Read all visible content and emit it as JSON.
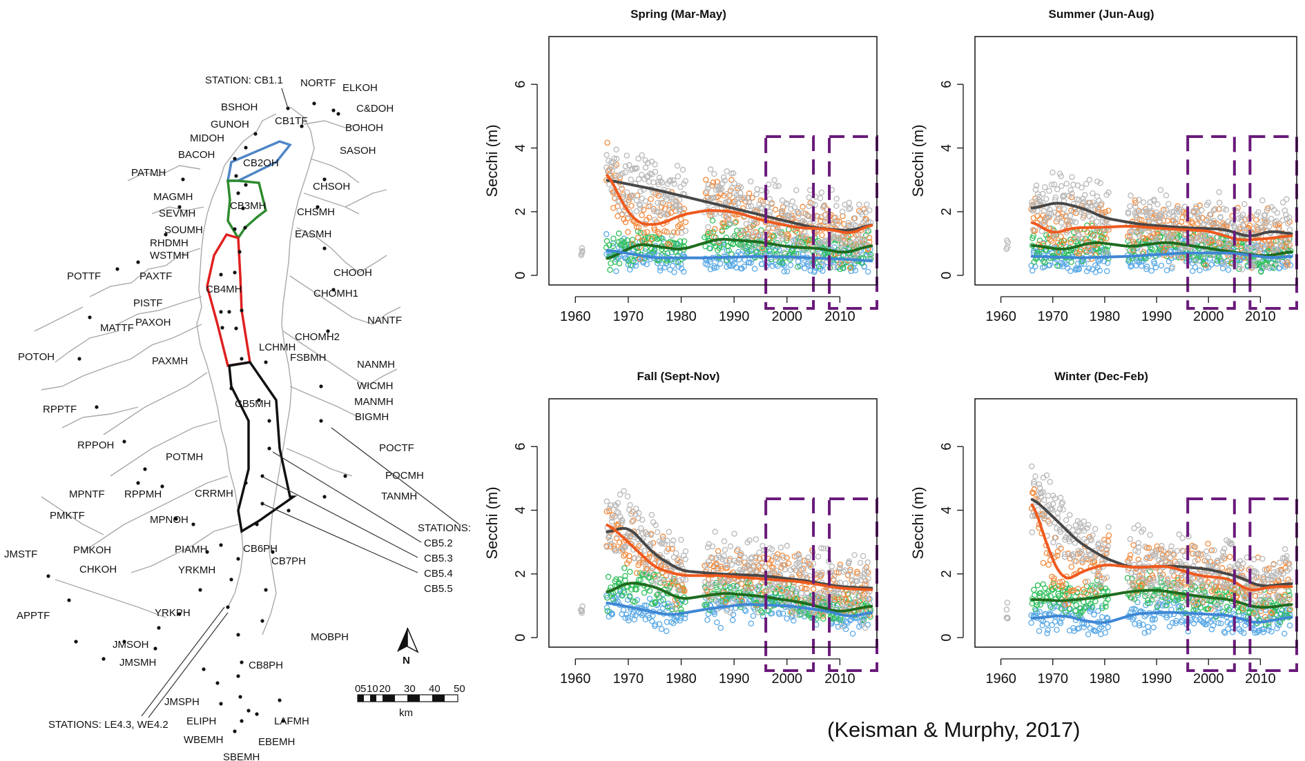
{
  "citation": "(Keisman & Murphy, 2017)",
  "map": {
    "north_label": "N",
    "scale_ticks": [
      "0",
      "5",
      "10",
      "20",
      "30",
      "40",
      "50"
    ],
    "scale_unit": "km",
    "station_labels": {
      "cb11": "STATION: CB1.1",
      "cb5": [
        "STATIONS:",
        "CB5.2",
        "CB5.3",
        "CB5.4",
        "CB5.5"
      ],
      "le": "STATIONS: LE4.3, WE4.2"
    },
    "segments": [
      {
        "name": "CB1TF"
      },
      {
        "name": "CB2OH"
      },
      {
        "name": "CB3MH"
      },
      {
        "name": "CB4MH"
      },
      {
        "name": "CB5MH"
      },
      {
        "name": "CB6PH"
      },
      {
        "name": "CB7PH"
      },
      {
        "name": "CB8PH"
      },
      {
        "name": "NORTF"
      },
      {
        "name": "ELKOH"
      },
      {
        "name": "BSHOH"
      },
      {
        "name": "C&DOH"
      },
      {
        "name": "GUNOH"
      },
      {
        "name": "BOHOH"
      },
      {
        "name": "MIDOH"
      },
      {
        "name": "SASOH"
      },
      {
        "name": "BACOH"
      },
      {
        "name": "PATMH"
      },
      {
        "name": "CHSOH"
      },
      {
        "name": "MAGMH"
      },
      {
        "name": "CHSMH"
      },
      {
        "name": "SEVMH"
      },
      {
        "name": "SOUMH"
      },
      {
        "name": "EASMH"
      },
      {
        "name": "RHDMH"
      },
      {
        "name": "WSTMH"
      },
      {
        "name": "POTTF"
      },
      {
        "name": "PAXTF"
      },
      {
        "name": "CHOOH"
      },
      {
        "name": "PISTF"
      },
      {
        "name": "CHOMH1"
      },
      {
        "name": "MATTF"
      },
      {
        "name": "PAXOH"
      },
      {
        "name": "NANTF"
      },
      {
        "name": "CHOMH2"
      },
      {
        "name": "LCHMH"
      },
      {
        "name": "POTOH"
      },
      {
        "name": "FSBMH"
      },
      {
        "name": "PAXMH"
      },
      {
        "name": "NANMH"
      },
      {
        "name": "WICMH"
      },
      {
        "name": "RPPTF"
      },
      {
        "name": "MANMH"
      },
      {
        "name": "BIGMH"
      },
      {
        "name": "RPPOH"
      },
      {
        "name": "POCTF"
      },
      {
        "name": "POTMH"
      },
      {
        "name": "POCMH"
      },
      {
        "name": "TANMH"
      },
      {
        "name": "MPNTF"
      },
      {
        "name": "RPPMH"
      },
      {
        "name": "CRRMH"
      },
      {
        "name": "PMKTF"
      },
      {
        "name": "MPNOH"
      },
      {
        "name": "JMSTF"
      },
      {
        "name": "PMKOH"
      },
      {
        "name": "PIAMH"
      },
      {
        "name": "CHKOH"
      },
      {
        "name": "YRKMH"
      },
      {
        "name": "APPTF"
      },
      {
        "name": "YRKPH"
      },
      {
        "name": "MOBPH"
      },
      {
        "name": "JMSOH"
      },
      {
        "name": "JMSMH"
      },
      {
        "name": "JMSPH"
      },
      {
        "name": "ELIPH"
      },
      {
        "name": "LAFMH"
      },
      {
        "name": "WBEMH"
      },
      {
        "name": "EBEMH"
      },
      {
        "name": "SBEMH"
      }
    ]
  },
  "chart_data": [
    {
      "type": "scatter",
      "title": "Spring (Mar-May)",
      "ylabel": "Secchi (m)",
      "xlabel": "",
      "xlim": [
        1955,
        2017
      ],
      "ylim": [
        -0.3,
        7.5
      ],
      "x_ticks": [
        1960,
        1970,
        1980,
        1990,
        2000,
        2010
      ],
      "y_ticks": [
        0,
        2,
        4,
        6
      ],
      "series": [
        {
          "color": "#474747",
          "x": [
            1966,
            1975,
            1985,
            1995,
            2005,
            2012,
            2016
          ],
          "values": [
            3.0,
            2.7,
            2.3,
            1.9,
            1.5,
            1.4,
            1.6
          ]
        },
        {
          "color": "#ef5a1f",
          "x": [
            1966,
            1969,
            1972,
            1976,
            1980,
            1985,
            1990,
            1996,
            2002,
            2008,
            2012,
            2016
          ],
          "values": [
            3.3,
            2.2,
            1.6,
            1.6,
            1.9,
            2.05,
            2.0,
            1.7,
            1.5,
            1.45,
            1.3,
            1.6
          ]
        },
        {
          "color": "#1f6b1f",
          "x": [
            1966,
            1972,
            1976,
            1980,
            1987,
            1995,
            2000,
            2006,
            2011,
            2016
          ],
          "values": [
            0.5,
            1.0,
            0.9,
            0.8,
            1.15,
            1.05,
            0.9,
            0.85,
            0.7,
            0.95
          ]
        },
        {
          "color": "#3f87d4",
          "x": [
            1966,
            1975,
            1985,
            1995,
            2005,
            2012,
            2016
          ],
          "values": [
            0.8,
            0.55,
            0.55,
            0.6,
            0.55,
            0.5,
            0.45
          ]
        }
      ],
      "boxes": [
        [
          1996,
          2005
        ],
        [
          2008,
          2017
        ]
      ]
    },
    {
      "type": "scatter",
      "title": "Summer (Jun-Aug)",
      "ylabel": "Secchi (m)",
      "xlabel": "",
      "xlim": [
        1955,
        2017
      ],
      "ylim": [
        -0.3,
        7.5
      ],
      "x_ticks": [
        1960,
        1970,
        1980,
        1990,
        2000,
        2010
      ],
      "y_ticks": [
        0,
        2,
        4,
        6
      ],
      "series": [
        {
          "color": "#474747",
          "x": [
            1966,
            1971,
            1976,
            1980,
            1987,
            1995,
            2003,
            2008,
            2012,
            2016
          ],
          "values": [
            2.1,
            2.3,
            2.1,
            1.8,
            1.6,
            1.5,
            1.45,
            1.2,
            1.4,
            1.3
          ]
        },
        {
          "color": "#ef5a1f",
          "x": [
            1966,
            1970,
            1974,
            1978,
            1985,
            1993,
            2000,
            2006,
            2011,
            2016
          ],
          "values": [
            1.7,
            1.3,
            1.5,
            1.5,
            1.55,
            1.45,
            1.4,
            1.1,
            1.15,
            1.25
          ]
        },
        {
          "color": "#1f6b1f",
          "x": [
            1966,
            1972,
            1978,
            1985,
            1992,
            2000,
            2006,
            2011,
            2016
          ],
          "values": [
            0.95,
            0.8,
            1.05,
            0.9,
            1.05,
            0.85,
            0.7,
            0.6,
            0.75
          ]
        },
        {
          "color": "#3f87d4",
          "x": [
            1966,
            1975,
            1985,
            1995,
            2005,
            2012,
            2016
          ],
          "values": [
            0.6,
            0.55,
            0.6,
            0.7,
            0.7,
            0.55,
            0.6
          ]
        }
      ],
      "boxes": [
        [
          1996,
          2005
        ],
        [
          2008,
          2017
        ]
      ]
    },
    {
      "type": "scatter",
      "title": "Fall (Sept-Nov)",
      "ylabel": "Secchi (m)",
      "xlabel": "",
      "xlim": [
        1955,
        2017
      ],
      "ylim": [
        -0.3,
        7.5
      ],
      "x_ticks": [
        1960,
        1970,
        1980,
        1990,
        2000,
        2010
      ],
      "y_ticks": [
        0,
        2,
        4,
        6
      ],
      "series": [
        {
          "color": "#474747",
          "x": [
            1966,
            1970,
            1975,
            1980,
            1987,
            1995,
            2003,
            2010,
            2016
          ],
          "values": [
            3.3,
            3.5,
            2.6,
            2.1,
            2.0,
            1.95,
            1.8,
            1.6,
            1.55
          ]
        },
        {
          "color": "#ef5a1f",
          "x": [
            1966,
            1970,
            1975,
            1980,
            1987,
            1995,
            2003,
            2010,
            2016
          ],
          "values": [
            3.6,
            3.0,
            2.2,
            1.95,
            1.95,
            1.85,
            1.75,
            1.55,
            1.5
          ]
        },
        {
          "color": "#1f6b1f",
          "x": [
            1966,
            1970,
            1975,
            1980,
            1988,
            1995,
            2003,
            2010,
            2016
          ],
          "values": [
            1.4,
            1.75,
            1.6,
            1.2,
            1.4,
            1.3,
            1.1,
            0.8,
            1.0
          ]
        },
        {
          "color": "#3f87d4",
          "x": [
            1966,
            1972,
            1978,
            1985,
            1992,
            2000,
            2007,
            2012,
            2016
          ],
          "values": [
            1.1,
            0.9,
            0.7,
            0.9,
            1.05,
            1.0,
            0.85,
            0.65,
            0.8
          ]
        }
      ],
      "boxes": [
        [
          1996,
          2005
        ],
        [
          2008,
          2017
        ]
      ]
    },
    {
      "type": "scatter",
      "title": "Winter (Dec-Feb)",
      "ylabel": "Secchi (m)",
      "xlabel": "",
      "xlim": [
        1955,
        2017
      ],
      "ylim": [
        -0.3,
        7.5
      ],
      "x_ticks": [
        1960,
        1970,
        1980,
        1990,
        2000,
        2010
      ],
      "y_ticks": [
        0,
        2,
        4,
        6
      ],
      "series": [
        {
          "color": "#474747",
          "x": [
            1966,
            1970,
            1975,
            1980,
            1985,
            1993,
            2000,
            2006,
            2010,
            2016
          ],
          "values": [
            4.4,
            3.8,
            3.0,
            2.5,
            2.2,
            2.25,
            2.15,
            1.9,
            1.6,
            1.7
          ]
        },
        {
          "color": "#ef5a1f",
          "x": [
            1966,
            1969,
            1972,
            1976,
            1980,
            1986,
            1992,
            1998,
            2004,
            2008,
            2012,
            2016
          ],
          "values": [
            4.4,
            2.8,
            1.75,
            2.1,
            2.3,
            2.2,
            2.25,
            1.95,
            1.85,
            1.45,
            1.6,
            1.6
          ]
        },
        {
          "color": "#1f6b1f",
          "x": [
            1966,
            1972,
            1978,
            1985,
            1990,
            1998,
            2004,
            2009,
            2012,
            2016
          ],
          "values": [
            1.2,
            1.15,
            1.25,
            1.45,
            1.5,
            1.3,
            1.2,
            0.95,
            0.95,
            1.05
          ]
        },
        {
          "color": "#3f87d4",
          "x": [
            1966,
            1972,
            1977,
            1980,
            1986,
            1992,
            1998,
            2004,
            2009,
            2016
          ],
          "values": [
            0.6,
            0.7,
            0.5,
            0.45,
            0.75,
            0.8,
            0.75,
            0.7,
            0.45,
            0.65
          ]
        }
      ],
      "boxes": [
        [
          1996,
          2005
        ],
        [
          2008,
          2017
        ]
      ]
    }
  ]
}
